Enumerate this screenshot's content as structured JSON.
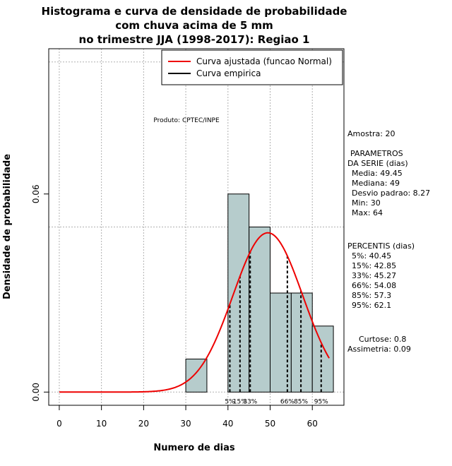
{
  "chart_data": {
    "type": "histogram",
    "title": [
      "Histograma e curva de densidade de probabilidade",
      "com chuva acima de 5 mm",
      "no trimestre JJA (1998-2017): Regiao 1"
    ],
    "xlabel": "Numero de dias",
    "ylabel": "Densidade de probabilidade",
    "xlim": [
      -2.5,
      67.5
    ],
    "ylim": [
      -0.004,
      0.104
    ],
    "x_ticks": [
      0,
      10,
      20,
      30,
      40,
      50,
      60
    ],
    "y_ticks": [
      {
        "value": 0.0,
        "label": "0.00"
      },
      {
        "value": 0.06,
        "label": "0.06"
      }
    ],
    "grid_x": [
      0,
      10,
      20,
      30,
      40,
      50,
      60
    ],
    "grid_y": [
      0.0,
      0.05,
      0.1
    ],
    "bins": [
      {
        "x0": 30,
        "x1": 35,
        "density": 0.01
      },
      {
        "x0": 35,
        "x1": 40,
        "density": 0.0
      },
      {
        "x0": 40,
        "x1": 45,
        "density": 0.06
      },
      {
        "x0": 45,
        "x1": 50,
        "density": 0.05
      },
      {
        "x0": 50,
        "x1": 55,
        "density": 0.03
      },
      {
        "x0": 55,
        "x1": 60,
        "density": 0.03
      },
      {
        "x0": 60,
        "x1": 65,
        "density": 0.02
      }
    ],
    "normal_fit": {
      "mean": 49.45,
      "sd": 8.27,
      "x_start": 0,
      "x_end": 64
    },
    "percentiles": [
      {
        "label": "5%",
        "value": 40.45
      },
      {
        "label": "15%",
        "value": 42.85
      },
      {
        "label": "33%",
        "value": 45.27
      },
      {
        "label": "66%",
        "value": 54.08
      },
      {
        "label": "85%",
        "value": 57.3
      },
      {
        "label": "95%",
        "value": 62.1
      }
    ],
    "legend": {
      "placement": "top-right",
      "entries": [
        {
          "name": "Curva ajustada (funcao Normal)",
          "color": "#ee0000"
        },
        {
          "name": "Curva empirica",
          "color": "#000000"
        }
      ]
    },
    "annotation": "Produto: CPTEC/INPE",
    "colors": {
      "bar_fill": "#b6cccc",
      "curve": "#ee0000",
      "grid": "#b0b0b0"
    }
  },
  "stats_panel": {
    "amostra": "Amostra: 20",
    "param_header_1": "PARAMETROS",
    "param_header_2": "DA SERIE (dias)",
    "media": "Media: 49.45",
    "mediana": "Mediana: 49",
    "desvio": "Desvio padrao: 8.27",
    "min": "Min: 30",
    "max": "Max: 64",
    "percentis_header": "PERCENTIS (dias)",
    "p5": "5%: 40.45",
    "p15": "15%: 42.85",
    "p33": "33%: 45.27",
    "p66": "66%: 54.08",
    "p85": "85%: 57.3",
    "p95": "95%: 62.1",
    "curtose": "Curtose: 0.8",
    "assimetria": "Assimetria: 0.09"
  }
}
